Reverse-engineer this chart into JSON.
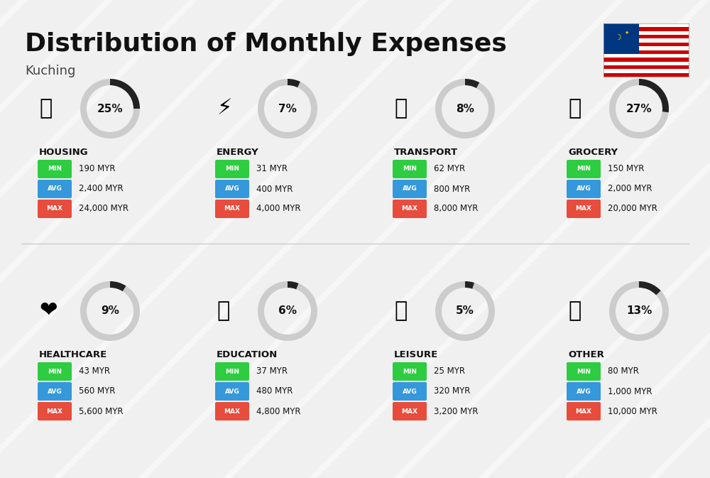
{
  "title": "Distribution of Monthly Expenses",
  "subtitle": "Kuching",
  "background_color": "#f0f0f0",
  "categories": [
    {
      "name": "HOUSING",
      "percent": 25,
      "icon": "🏢",
      "min_val": "190 MYR",
      "avg_val": "2,400 MYR",
      "max_val": "24,000 MYR",
      "row": 0,
      "col": 0
    },
    {
      "name": "ENERGY",
      "percent": 7,
      "icon": "⚡",
      "min_val": "31 MYR",
      "avg_val": "400 MYR",
      "max_val": "4,000 MYR",
      "row": 0,
      "col": 1
    },
    {
      "name": "TRANSPORT",
      "percent": 8,
      "icon": "🚌",
      "min_val": "62 MYR",
      "avg_val": "800 MYR",
      "max_val": "8,000 MYR",
      "row": 0,
      "col": 2
    },
    {
      "name": "GROCERY",
      "percent": 27,
      "icon": "🛒",
      "min_val": "150 MYR",
      "avg_val": "2,000 MYR",
      "max_val": "20,000 MYR",
      "row": 0,
      "col": 3
    },
    {
      "name": "HEALTHCARE",
      "percent": 9,
      "icon": "❤",
      "min_val": "43 MYR",
      "avg_val": "560 MYR",
      "max_val": "5,600 MYR",
      "row": 1,
      "col": 0
    },
    {
      "name": "EDUCATION",
      "percent": 6,
      "icon": "🎓",
      "min_val": "37 MYR",
      "avg_val": "480 MYR",
      "max_val": "4,800 MYR",
      "row": 1,
      "col": 1
    },
    {
      "name": "LEISURE",
      "percent": 5,
      "icon": "🛋",
      "min_val": "25 MYR",
      "avg_val": "320 MYR",
      "max_val": "3,200 MYR",
      "row": 1,
      "col": 2
    },
    {
      "name": "OTHER",
      "percent": 13,
      "icon": "💰",
      "min_val": "80 MYR",
      "avg_val": "1,000 MYR",
      "max_val": "10,000 MYR",
      "row": 1,
      "col": 3
    }
  ],
  "color_min": "#2ecc40",
  "color_avg": "#3498db",
  "color_max": "#e74c3c",
  "arc_color": "#222222",
  "arc_bg_color": "#cccccc",
  "label_color_min": "#ffffff",
  "label_color_avg": "#ffffff",
  "label_color_max": "#ffffff"
}
